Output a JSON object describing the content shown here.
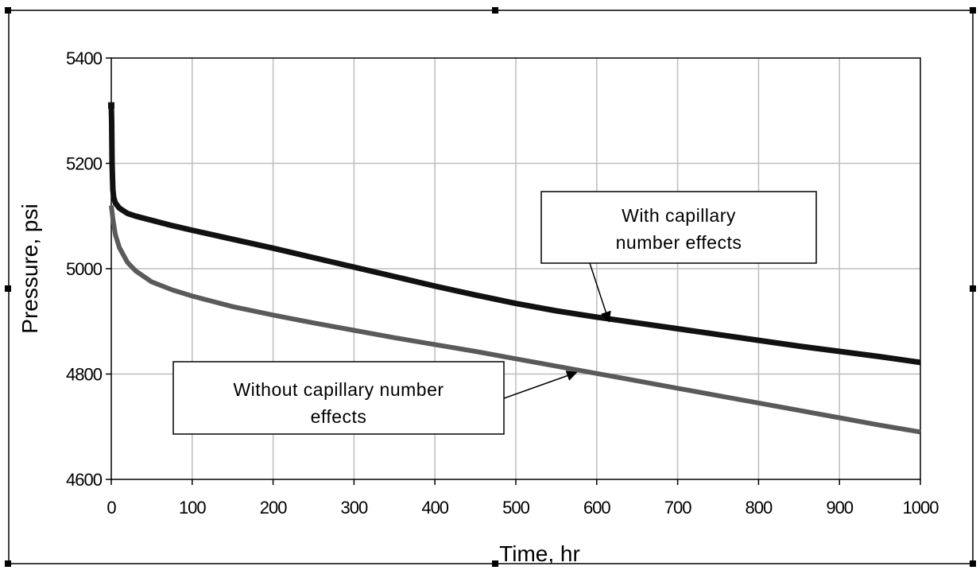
{
  "chart_data": {
    "type": "line",
    "xlabel": "Time, hr",
    "ylabel": "Pressure, psi",
    "xlim": [
      0,
      1000
    ],
    "ylim": [
      4600,
      5400
    ],
    "x_ticks": [
      0,
      100,
      200,
      300,
      400,
      500,
      600,
      700,
      800,
      900,
      1000
    ],
    "y_ticks": [
      4600,
      4800,
      5000,
      5200,
      5400
    ],
    "grid": true,
    "legend": "none",
    "series": [
      {
        "name": "With capillary number effects",
        "color": "#111111",
        "x": [
          0,
          0.5,
          1,
          2,
          3,
          5,
          10,
          20,
          30,
          50,
          75,
          100,
          150,
          200,
          250,
          300,
          350,
          400,
          450,
          500,
          550,
          600,
          650,
          700,
          750,
          800,
          850,
          900,
          950,
          1000
        ],
        "y": [
          5310,
          5280,
          5200,
          5150,
          5135,
          5125,
          5115,
          5105,
          5100,
          5092,
          5082,
          5073,
          5056,
          5039,
          5021,
          5003,
          4985,
          4967,
          4950,
          4934,
          4920,
          4908,
          4897,
          4886,
          4875,
          4864,
          4853,
          4843,
          4833,
          4822
        ]
      },
      {
        "name": "Without capillary number effects",
        "color": "#5a5a5a",
        "x": [
          0,
          2,
          5,
          10,
          20,
          30,
          50,
          75,
          100,
          150,
          200,
          250,
          300,
          350,
          400,
          450,
          500,
          550,
          600,
          650,
          700,
          750,
          800,
          850,
          900,
          950,
          1000
        ],
        "y": [
          5120,
          5095,
          5065,
          5040,
          5012,
          4996,
          4975,
          4960,
          4948,
          4928,
          4912,
          4897,
          4883,
          4869,
          4856,
          4843,
          4829,
          4815,
          4801,
          4787,
          4773,
          4759,
          4745,
          4731,
          4717,
          4703,
          4690
        ]
      }
    ],
    "annotations": [
      {
        "text": [
          "With capillary",
          "number effects"
        ],
        "points_to": "With capillary number effects",
        "arrow_target": [
          615,
          4900
        ]
      },
      {
        "text": [
          "Without capillary number",
          "effects"
        ],
        "points_to": "Without capillary number effects",
        "arrow_target": [
          575,
          4803
        ]
      }
    ]
  }
}
